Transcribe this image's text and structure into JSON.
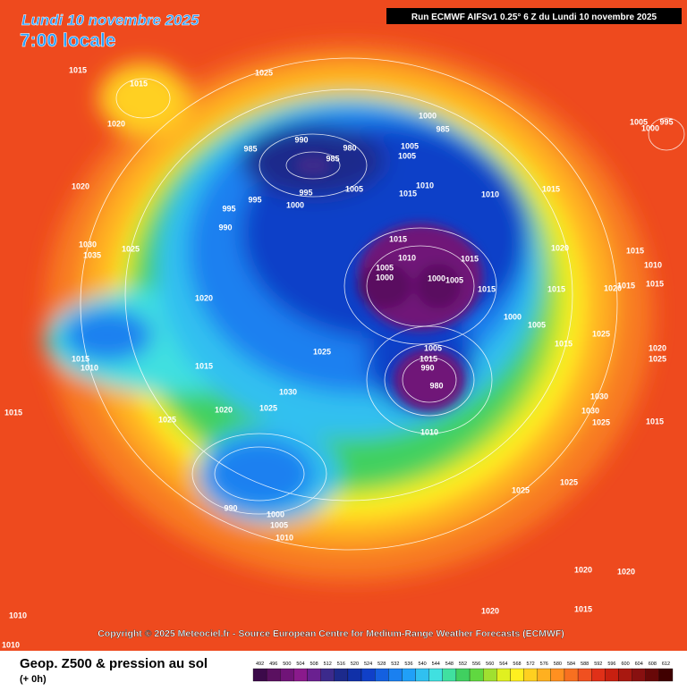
{
  "header": {
    "title": "Lundi 10 novembre 2025",
    "time": "7:00 locale",
    "run": "Run ECMWF AIFSv1 0.25° 6 Z du Lundi 10 novembre 2025"
  },
  "map": {
    "copyright": "Copyright © 2025 Meteociel.fr - Source European Centre for Medium-Range Weather Forecasts (ECMWF)",
    "pressure_labels": [
      1015,
      1015,
      1025,
      1020,
      1020,
      1030,
      1035,
      1025,
      985,
      990,
      980,
      985,
      995,
      1000,
      995,
      1005,
      1005,
      1000,
      985,
      1005,
      1010,
      1010,
      1015,
      1015,
      1015,
      1015,
      1010,
      1005,
      1000,
      1000,
      1005,
      1015,
      1000,
      1005,
      1015,
      1020,
      1015,
      1025,
      1030,
      1015,
      1010,
      1015,
      1015,
      1020,
      1025,
      1020,
      1030,
      1025,
      1015,
      990,
      980,
      1005,
      1015,
      1010,
      995,
      990,
      1000,
      1005,
      1010,
      1015,
      1010,
      1015,
      1025,
      1025,
      1025,
      1025,
      1020,
      1020,
      1020,
      1015,
      1010,
      1010,
      1005,
      995,
      1000,
      990,
      1015,
      1020,
      1030,
      1025,
      1020
    ]
  },
  "legend": {
    "title": "Geop. Z500 & pression au sol",
    "lead": "(+ 0h)",
    "levels": [
      492,
      496,
      500,
      504,
      508,
      512,
      516,
      520,
      524,
      528,
      532,
      536,
      540,
      544,
      548,
      552,
      556,
      560,
      564,
      568,
      572,
      576,
      580,
      584,
      588,
      592,
      596,
      600,
      604,
      608,
      612
    ],
    "colors": [
      "#3c0a4a",
      "#5a1060",
      "#701478",
      "#8a1a8c",
      "#6a2090",
      "#3c2a8c",
      "#1c2a8c",
      "#1030a8",
      "#1040c8",
      "#1460e0",
      "#1a80f0",
      "#20a0f8",
      "#30c0f0",
      "#40e0e0",
      "#40e0a0",
      "#40d060",
      "#60d840",
      "#a0e030",
      "#e0f020",
      "#fff020",
      "#ffd020",
      "#ffb020",
      "#ff9020",
      "#f87020",
      "#f05020",
      "#e03018",
      "#c82010",
      "#a81810",
      "#881010",
      "#680808",
      "#400000"
    ]
  }
}
